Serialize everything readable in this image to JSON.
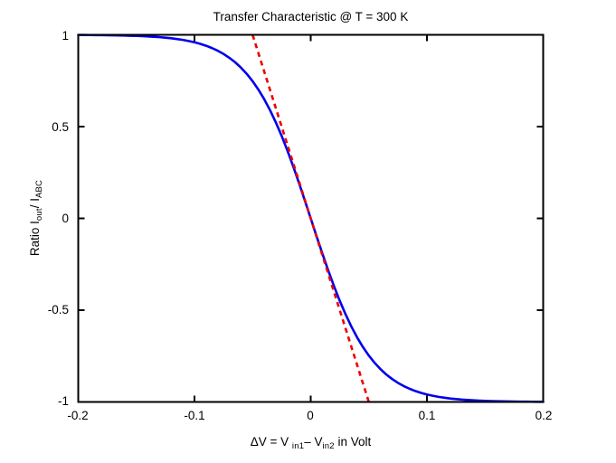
{
  "title": "Transfer Characteristic @ T = 300 K",
  "labels": {
    "ylabel_parts": {
      "p1": "Ratio I",
      "sub1": "out",
      "p2": "/ I",
      "sub2": "ABC"
    },
    "xlabel_parts": {
      "p1": "ΔV = V ",
      "sub1": "in1",
      "p2": "– V",
      "sub2": "in2",
      "p3": " in Volt"
    }
  },
  "chart_data": {
    "type": "line",
    "title": "Transfer Characteristic @ T = 300 K",
    "xlabel": "ΔV = V_in1 − V_in2 in Volt",
    "ylabel": "Ratio I_out / I_ABC",
    "xlim": [
      -0.2,
      0.2
    ],
    "ylim": [
      -1,
      1
    ],
    "x_ticks": [
      -0.2,
      -0.1,
      0,
      0.1,
      0.2
    ],
    "x_tick_labels": [
      "-0.2",
      "-0.1",
      "0",
      "0.1",
      "0.2"
    ],
    "y_ticks": [
      1,
      0.5,
      0,
      -0.5,
      -1
    ],
    "y_tick_labels": [
      "1",
      "0.5",
      "0",
      "-0.5",
      "-1"
    ],
    "grid": false,
    "legend": "none",
    "frame_color": "#000000",
    "background_color": "#FFFFFF",
    "series": [
      {
        "name": "transfer-curve",
        "color": "#0000EE",
        "line_style": "solid",
        "line_width": 2.6,
        "x_start": -0.2,
        "x_step": 0.005,
        "y": [
          0.9992,
          0.999,
          0.9988,
          0.9985,
          0.9982,
          0.9977,
          0.9973,
          0.9966,
          0.996,
          0.995,
          0.9941,
          0.9927,
          0.9913,
          0.9893,
          0.9871,
          0.9842,
          0.9811,
          0.9769,
          0.9722,
          0.9662,
          0.9592,
          0.9506,
          0.9404,
          0.928,
          0.9133,
          0.8958,
          0.8748,
          0.8503,
          0.821,
          0.7871,
          0.7473,
          0.7016,
          0.6492,
          0.5896,
          0.5227,
          0.4492,
          0.3685,
          0.2822,
          0.191,
          0.0964,
          0,
          -0.0964,
          -0.191,
          -0.2822,
          -0.3685,
          -0.4492,
          -0.5227,
          -0.5896,
          -0.6492,
          -0.7016,
          -0.7473,
          -0.7871,
          -0.821,
          -0.8503,
          -0.8748,
          -0.8958,
          -0.9133,
          -0.928,
          -0.9404,
          -0.9506,
          -0.9592,
          -0.9662,
          -0.9722,
          -0.9769,
          -0.9811,
          -0.9842,
          -0.9871,
          -0.9893,
          -0.9913,
          -0.9927,
          -0.9941,
          -0.995,
          -0.996,
          -0.9966,
          -0.9973,
          -0.9977,
          -0.9982,
          -0.9985,
          -0.9988,
          -0.999,
          -0.9992
        ]
      },
      {
        "name": "tangent-line",
        "color": "#EE0000",
        "line_style": "dashed",
        "line_width": 2.6,
        "points": [
          [
            -0.05,
            1.0
          ],
          [
            0.05,
            -1.0
          ]
        ]
      }
    ]
  }
}
